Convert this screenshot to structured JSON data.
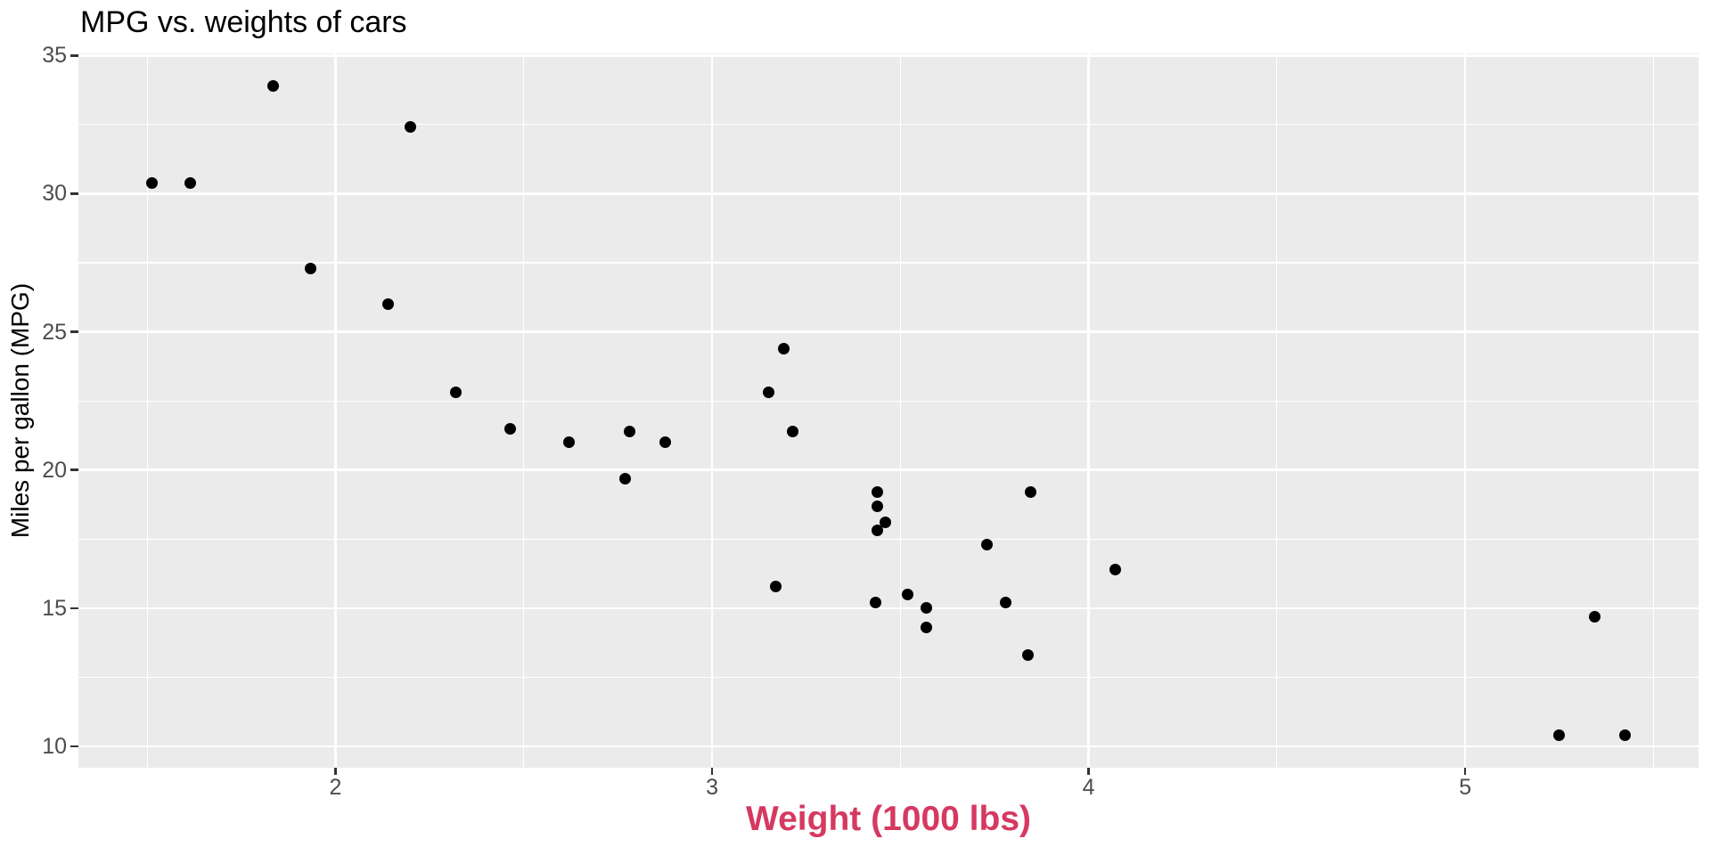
{
  "chart_data": {
    "type": "scatter",
    "title": "MPG vs. weights of cars",
    "xlabel": "Weight (1000 lbs)",
    "ylabel": "Miles per gallon (MPG)",
    "x_ticks": [
      2,
      3,
      4,
      5
    ],
    "y_ticks": [
      10,
      15,
      20,
      25,
      30,
      35
    ],
    "x_minor_ticks": [
      1.5,
      2.5,
      3.5,
      4.5,
      5.5
    ],
    "y_minor_ticks": [
      12.5,
      17.5,
      22.5,
      27.5,
      32.5
    ],
    "xlim": [
      1.3174,
      5.6196
    ],
    "ylim": [
      9.225,
      35.075
    ],
    "grid": true,
    "legend": false,
    "points": [
      [
        2.62,
        21.0
      ],
      [
        2.875,
        21.0
      ],
      [
        2.32,
        22.8
      ],
      [
        3.215,
        21.4
      ],
      [
        3.44,
        18.7
      ],
      [
        3.46,
        18.1
      ],
      [
        3.57,
        14.3
      ],
      [
        3.19,
        24.4
      ],
      [
        3.15,
        22.8
      ],
      [
        3.44,
        19.2
      ],
      [
        3.44,
        17.8
      ],
      [
        4.07,
        16.4
      ],
      [
        3.73,
        17.3
      ],
      [
        3.78,
        15.2
      ],
      [
        5.25,
        10.4
      ],
      [
        5.424,
        10.4
      ],
      [
        5.345,
        14.7
      ],
      [
        2.2,
        32.4
      ],
      [
        1.615,
        30.4
      ],
      [
        1.835,
        33.9
      ],
      [
        2.465,
        21.5
      ],
      [
        3.52,
        15.5
      ],
      [
        3.435,
        15.2
      ],
      [
        3.84,
        13.3
      ],
      [
        3.845,
        19.2
      ],
      [
        1.935,
        27.3
      ],
      [
        2.14,
        26.0
      ],
      [
        1.513,
        30.4
      ],
      [
        3.17,
        15.8
      ],
      [
        2.77,
        19.7
      ],
      [
        3.57,
        15.0
      ],
      [
        2.78,
        21.4
      ]
    ]
  },
  "theme": {
    "background": "#FFFFFF",
    "panel_bg": "#EBEBEB",
    "grid_color": "#FFFFFF",
    "point_color": "#000000",
    "tick_mark_color": "#333333",
    "tick_label_color": "#4D4D4D",
    "title_color": "#000000",
    "ylabel_color": "#000000",
    "xlabel_color": "#D63960"
  }
}
